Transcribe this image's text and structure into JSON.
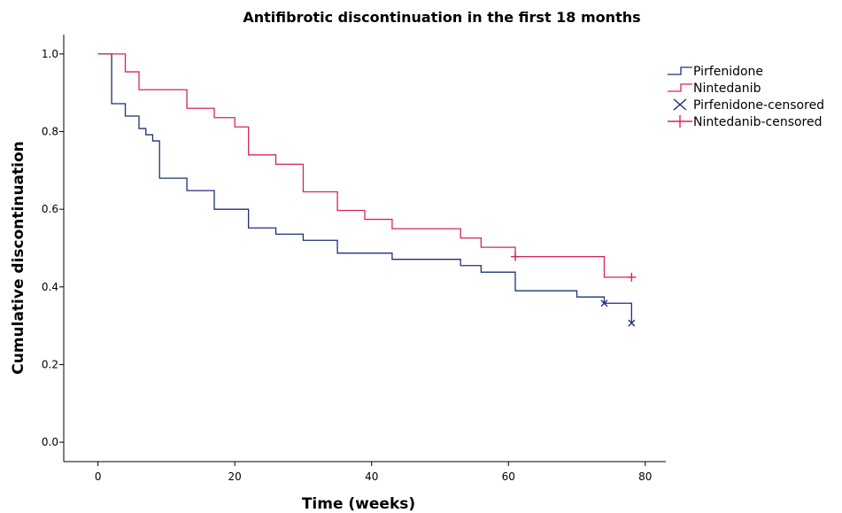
{
  "chart_data": {
    "type": "line",
    "step": true,
    "title": "Antifibrotic discontinuation in the first 18 months",
    "xlabel": "Time (weeks)",
    "ylabel": "Cumulative discontinuation",
    "xlim": [
      -5,
      83
    ],
    "ylim": [
      -0.05,
      1.05
    ],
    "xticks": [
      0,
      20,
      40,
      60,
      80
    ],
    "yticks": [
      0.0,
      0.2,
      0.4,
      0.6,
      0.8,
      1.0
    ],
    "xtick_labels": [
      "0",
      "20",
      "40",
      "60",
      "80"
    ],
    "ytick_labels": [
      "0.0",
      "0.2",
      "0.4",
      "0.6",
      "0.8",
      "1.0"
    ],
    "grid": false,
    "legend_position": "top-right",
    "legend": [
      "Pirfenidone",
      "Nintedanib",
      "Pirfenidone-censored",
      "Nintedanib-censored"
    ],
    "series": [
      {
        "name": "Pirfenidone",
        "color": "#1f2f7a",
        "censored_marker": "x",
        "steps": [
          [
            0,
            1.0
          ],
          [
            2,
            0.872
          ],
          [
            4,
            0.84
          ],
          [
            6,
            0.808
          ],
          [
            7,
            0.792
          ],
          [
            8,
            0.776
          ],
          [
            9,
            0.68
          ],
          [
            13,
            0.648
          ],
          [
            17,
            0.6
          ],
          [
            22,
            0.552
          ],
          [
            26,
            0.536
          ],
          [
            30,
            0.52
          ],
          [
            35,
            0.487
          ],
          [
            43,
            0.471
          ],
          [
            53,
            0.455
          ],
          [
            56,
            0.438
          ],
          [
            61,
            0.39
          ],
          [
            70,
            0.374
          ],
          [
            74,
            0.358
          ],
          [
            78,
            0.307
          ]
        ],
        "end_x": 78,
        "censored": [
          [
            74,
            0.358
          ],
          [
            78,
            0.307
          ]
        ]
      },
      {
        "name": "Nintedanib",
        "color": "#d6274f",
        "censored_marker": "+",
        "steps": [
          [
            0,
            1.0
          ],
          [
            4,
            0.954
          ],
          [
            6,
            0.908
          ],
          [
            13,
            0.86
          ],
          [
            17,
            0.836
          ],
          [
            20,
            0.812
          ],
          [
            22,
            0.74
          ],
          [
            26,
            0.716
          ],
          [
            30,
            0.645
          ],
          [
            35,
            0.597
          ],
          [
            39,
            0.574
          ],
          [
            43,
            0.55
          ],
          [
            53,
            0.526
          ],
          [
            56,
            0.502
          ],
          [
            61,
            0.478
          ],
          [
            74,
            0.425
          ]
        ],
        "end_x": 78,
        "censored": [
          [
            61,
            0.478
          ],
          [
            78,
            0.425
          ]
        ]
      }
    ]
  }
}
